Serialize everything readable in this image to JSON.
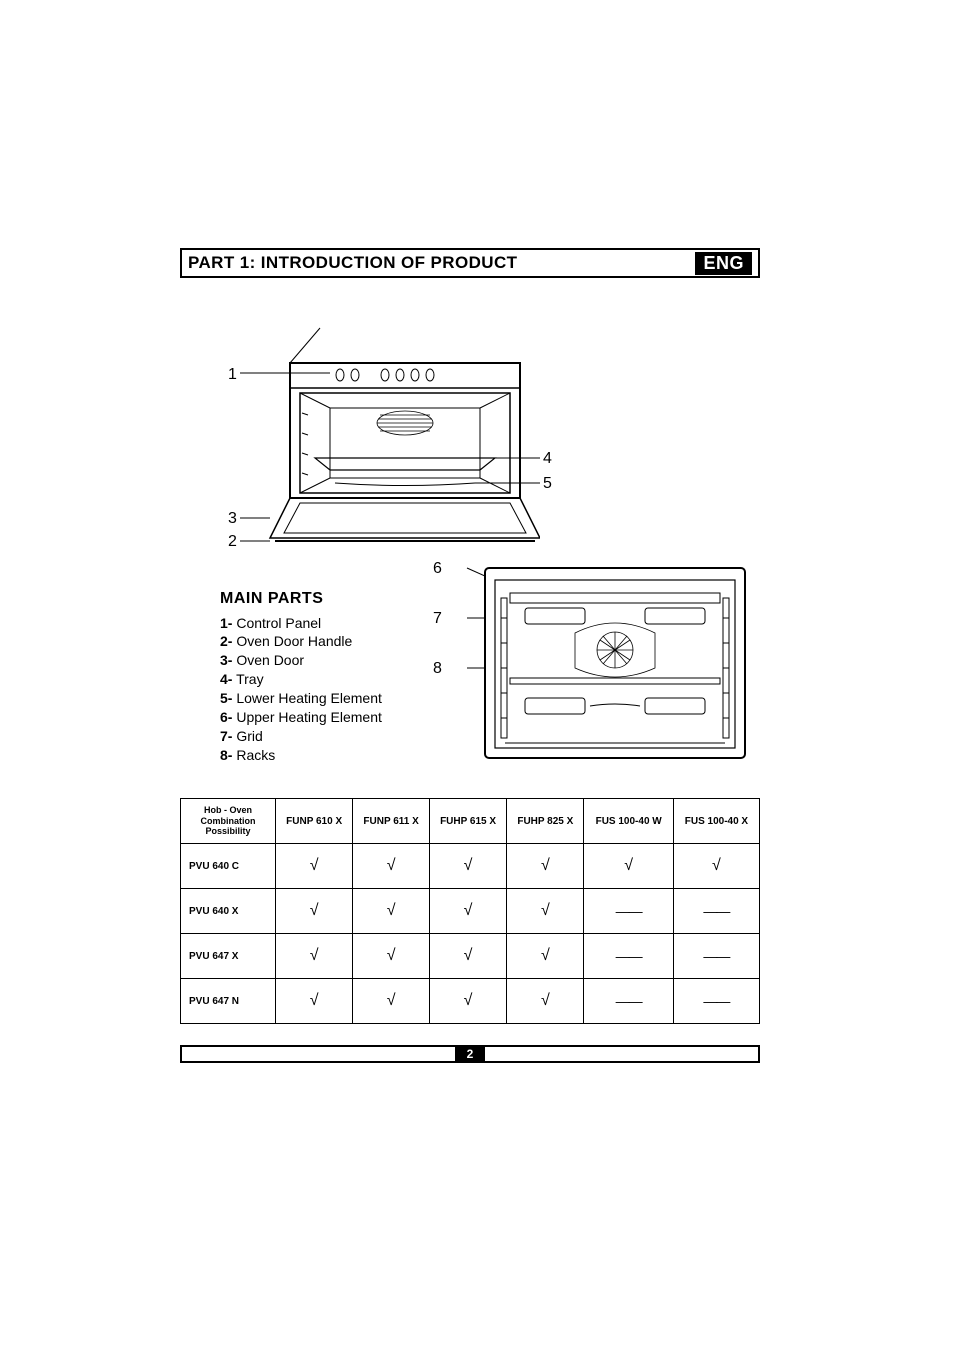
{
  "header": {
    "title": "PART 1: INTRODUCTION OF PRODUCT",
    "language": "ENG"
  },
  "diagram1": {
    "callouts": [
      "1",
      "2",
      "3",
      "4",
      "5"
    ]
  },
  "diagram2": {
    "callouts": [
      "6",
      "7",
      "8"
    ]
  },
  "parts": {
    "title": "MAIN PARTS",
    "items": [
      {
        "n": "1-",
        "label": "Control Panel"
      },
      {
        "n": "2-",
        "label": "Oven Door Handle"
      },
      {
        "n": "3-",
        "label": "Oven Door"
      },
      {
        "n": "4-",
        "label": "Tray"
      },
      {
        "n": "5-",
        "label": "Lower Heating Element"
      },
      {
        "n": "6-",
        "label": "Upper Heating Element"
      },
      {
        "n": "7-",
        "label": "Grid"
      },
      {
        "n": "8-",
        "label": "Racks"
      }
    ]
  },
  "table": {
    "corner": "Hob - Oven Combination Possibility",
    "columns": [
      "FUNP 610 X",
      "FUNP 611 X",
      "FUHP 615 X",
      "FUHP 825 X",
      "FUS 100-40 W",
      "FUS 100-40 X"
    ],
    "rows": [
      {
        "label": "PVU 640 C",
        "cells": [
          "check",
          "check",
          "check",
          "check",
          "check",
          "check"
        ]
      },
      {
        "label": "PVU 640 X",
        "cells": [
          "check",
          "check",
          "check",
          "check",
          "dash",
          "dash"
        ]
      },
      {
        "label": "PVU 647 X",
        "cells": [
          "check",
          "check",
          "check",
          "check",
          "dash",
          "dash"
        ]
      },
      {
        "label": "PVU 647 N",
        "cells": [
          "check",
          "check",
          "check",
          "check",
          "dash",
          "dash"
        ]
      }
    ],
    "check_glyph": "√",
    "dash_glyph": "——"
  },
  "page_number": "2"
}
